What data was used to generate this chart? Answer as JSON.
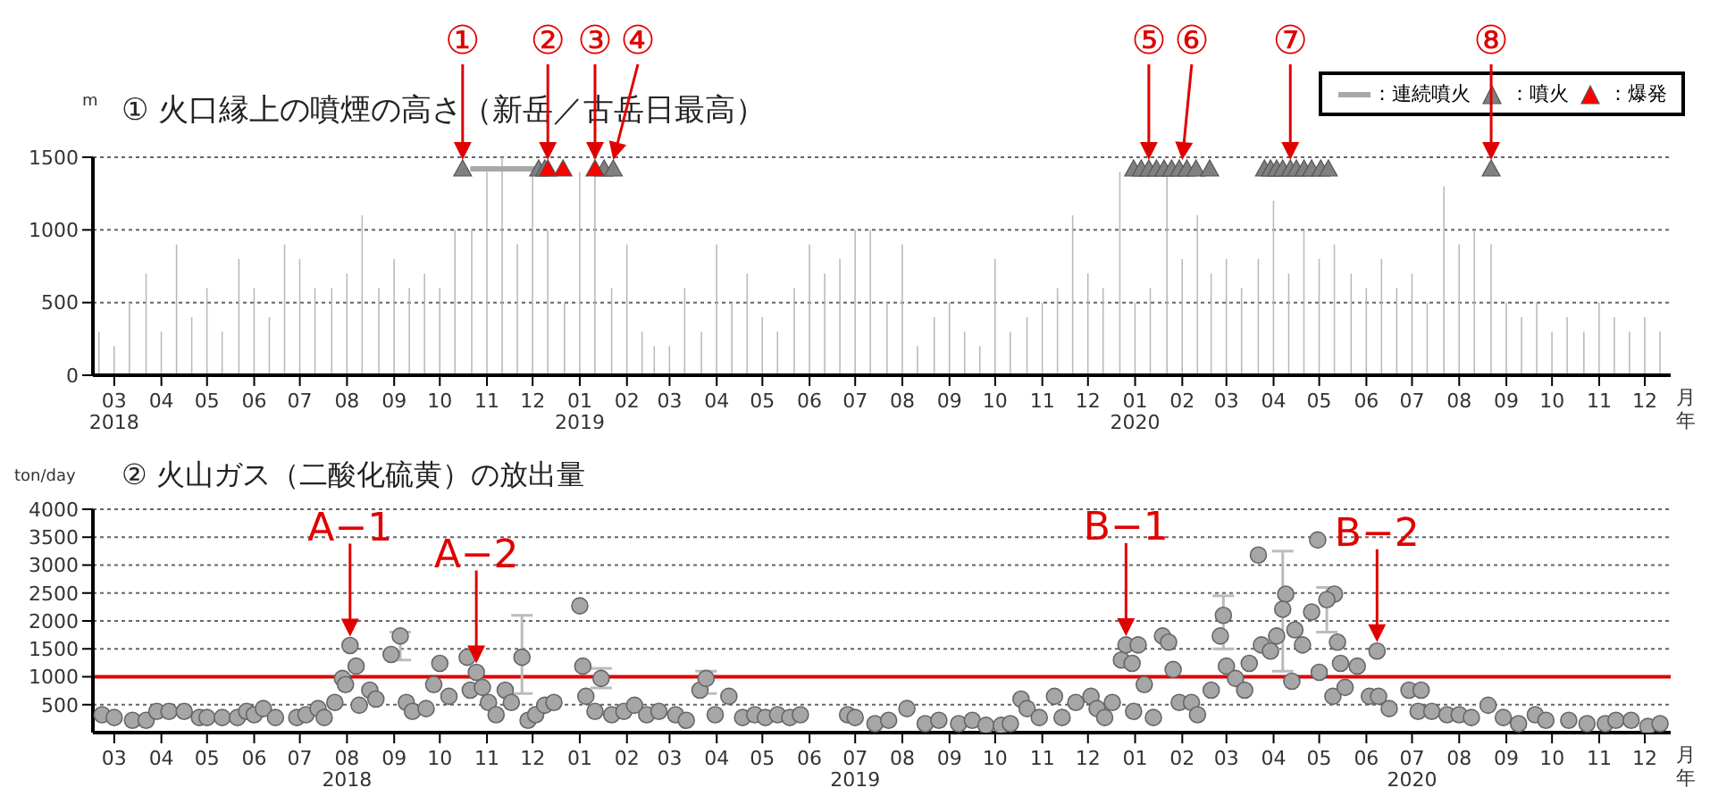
{
  "chart_data": [
    {
      "type": "bar",
      "title": "① 火口縁上の噴煙の高さ（新岳／古岳日最高）",
      "ylabel": "m",
      "xlabel": "月年",
      "legend": "top right",
      "grid": "y",
      "xlim": [
        "2018-03-01",
        "2021-01-01"
      ],
      "ylim": [
        0,
        1500
      ],
      "yticks": [
        0,
        500,
        1000,
        1500
      ],
      "xticks": [
        {
          "value": "2018-03-15",
          "label": "03\n2018"
        },
        {
          "value": "2018-04-15",
          "label": "04"
        },
        {
          "value": "2018-05-15",
          "label": "05"
        },
        {
          "value": "2018-06-15",
          "label": "06"
        },
        {
          "value": "2018-07-15",
          "label": "07"
        },
        {
          "value": "2018-08-15",
          "label": "08"
        },
        {
          "value": "2018-09-15",
          "label": "09"
        },
        {
          "value": "2018-10-15",
          "label": "10"
        },
        {
          "value": "2018-11-15",
          "label": "11"
        },
        {
          "value": "2018-12-15",
          "label": "12"
        },
        {
          "value": "2019-01-15",
          "label": "01\n2019"
        },
        {
          "value": "2019-02-15",
          "label": "02"
        },
        {
          "value": "2019-03-15",
          "label": "03"
        },
        {
          "value": "2019-04-15",
          "label": "04"
        },
        {
          "value": "2019-05-15",
          "label": "05"
        },
        {
          "value": "2019-06-15",
          "label": "06"
        },
        {
          "value": "2019-07-15",
          "label": "07"
        },
        {
          "value": "2019-08-15",
          "label": "08"
        },
        {
          "value": "2019-09-15",
          "label": "09"
        },
        {
          "value": "2019-10-15",
          "label": "10"
        },
        {
          "value": "2019-11-15",
          "label": "11"
        },
        {
          "value": "2019-12-15",
          "label": "12"
        },
        {
          "value": "2020-01-15",
          "label": "01\n2020"
        },
        {
          "value": "2020-02-15",
          "label": "02"
        },
        {
          "value": "2020-03-15",
          "label": "03"
        },
        {
          "value": "2020-04-15",
          "label": "04"
        },
        {
          "value": "2020-05-15",
          "label": "05"
        },
        {
          "value": "2020-06-15",
          "label": "06"
        },
        {
          "value": "2020-07-15",
          "label": "07"
        },
        {
          "value": "2020-08-15",
          "label": "08"
        },
        {
          "value": "2020-09-15",
          "label": "09"
        },
        {
          "value": "2020-10-15",
          "label": "10"
        },
        {
          "value": "2020-11-15",
          "label": "11"
        },
        {
          "value": "2020-12-15",
          "label": "12"
        }
      ],
      "series": [
        {
          "type": "bar",
          "color": "#b8b8b8",
          "x": [
            "2018-03-05",
            "2018-03-15",
            "2018-03-25",
            "2018-04-05",
            "2018-04-15",
            "2018-04-25",
            "2018-05-05",
            "2018-05-15",
            "2018-05-25",
            "2018-06-05",
            "2018-06-15",
            "2018-06-25",
            "2018-07-05",
            "2018-07-15",
            "2018-07-25",
            "2018-08-05",
            "2018-08-15",
            "2018-08-25",
            "2018-09-05",
            "2018-09-15",
            "2018-09-25",
            "2018-10-05",
            "2018-10-15",
            "2018-10-25",
            "2018-11-05",
            "2018-11-15",
            "2018-11-25",
            "2018-12-05",
            "2018-12-15",
            "2018-12-25",
            "2019-01-05",
            "2019-01-15",
            "2019-01-25",
            "2019-02-05",
            "2019-02-15",
            "2019-02-25",
            "2019-03-05",
            "2019-03-15",
            "2019-03-25",
            "2019-04-05",
            "2019-04-15",
            "2019-04-25",
            "2019-05-05",
            "2019-05-15",
            "2019-05-25",
            "2019-06-05",
            "2019-06-15",
            "2019-06-25",
            "2019-07-05",
            "2019-07-15",
            "2019-07-25",
            "2019-08-05",
            "2019-08-15",
            "2019-08-25",
            "2019-09-05",
            "2019-09-15",
            "2019-09-25",
            "2019-10-05",
            "2019-10-15",
            "2019-10-25",
            "2019-11-05",
            "2019-11-15",
            "2019-11-25",
            "2019-12-05",
            "2019-12-15",
            "2019-12-25",
            "2020-01-05",
            "2020-01-15",
            "2020-01-25",
            "2020-02-05",
            "2020-02-15",
            "2020-02-25",
            "2020-03-05",
            "2020-03-15",
            "2020-03-25",
            "2020-04-05",
            "2020-04-15",
            "2020-04-25",
            "2020-05-05",
            "2020-05-15",
            "2020-05-25",
            "2020-06-05",
            "2020-06-15",
            "2020-06-25",
            "2020-07-05",
            "2020-07-15",
            "2020-07-25",
            "2020-08-05",
            "2020-08-15",
            "2020-08-25",
            "2020-09-05",
            "2020-09-15",
            "2020-09-25",
            "2020-10-05",
            "2020-10-15",
            "2020-10-25",
            "2020-11-05",
            "2020-11-15",
            "2020-11-25",
            "2020-12-05",
            "2020-12-15",
            "2020-12-25"
          ],
          "values": [
            300,
            200,
            500,
            700,
            300,
            900,
            400,
            600,
            300,
            800,
            600,
            400,
            900,
            800,
            600,
            600,
            700,
            1100,
            600,
            800,
            600,
            700,
            600,
            1000,
            1000,
            1400,
            1500,
            900,
            1400,
            1000,
            500,
            1400,
            1400,
            600,
            900,
            300,
            200,
            200,
            600,
            300,
            900,
            500,
            700,
            400,
            300,
            600,
            900,
            700,
            800,
            1000,
            1000,
            500,
            900,
            200,
            400,
            500,
            300,
            200,
            800,
            300,
            400,
            500,
            600,
            1100,
            700,
            600,
            1400,
            500,
            600,
            1400,
            800,
            1100,
            700,
            800,
            600,
            800,
            1200,
            700,
            1000,
            800,
            900,
            700,
            600,
            800,
            600,
            700,
            500,
            1300,
            900,
            1000,
            900,
            500,
            400,
            500,
            300,
            400,
            300,
            500,
            400,
            300,
            400,
            300
          ]
        },
        {
          "type": "line",
          "name": "：連続噴火",
          "color": "#a8a8a8",
          "x": [
            "2018-11-04",
            "2018-12-17"
          ],
          "values": [
            1420,
            1420
          ]
        },
        {
          "type": "scatter",
          "name": "：噴火",
          "color": "#808080",
          "marker": "triangle",
          "x": [
            "2018-10-30",
            "2018-12-19",
            "2018-12-23",
            "2019-01-31",
            "2019-02-06",
            "2020-01-14",
            "2020-01-19",
            "2020-01-24",
            "2020-01-29",
            "2020-02-03",
            "2020-02-08",
            "2020-02-13",
            "2020-02-18",
            "2020-02-24",
            "2020-03-04",
            "2020-04-09",
            "2020-04-13",
            "2020-04-17",
            "2020-04-21",
            "2020-04-26",
            "2020-04-30",
            "2020-05-05",
            "2020-05-10",
            "2020-05-16",
            "2020-05-21",
            "2020-09-05"
          ],
          "values": [
            1420,
            1420,
            1420,
            1420,
            1420,
            1420,
            1420,
            1420,
            1420,
            1420,
            1420,
            1420,
            1420,
            1420,
            1420,
            1420,
            1420,
            1420,
            1420,
            1420,
            1420,
            1420,
            1420,
            1420,
            1420,
            1420
          ]
        },
        {
          "type": "scatter",
          "name": "：爆発",
          "color": "#ff0000",
          "marker": "triangle",
          "x": [
            "2018-12-25",
            "2019-01-04",
            "2019-01-25"
          ],
          "values": [
            1420,
            1420,
            1420
          ]
        }
      ],
      "annotations": [
        {
          "text": "①",
          "x": "2018-10-30",
          "y": 1420
        },
        {
          "text": "②",
          "x": "2018-12-25",
          "y": 1420
        },
        {
          "text": "③",
          "x": "2019-01-25",
          "y": 1420
        },
        {
          "text": "④",
          "x": "2019-02-06",
          "y": 1420
        },
        {
          "text": "⑤",
          "x": "2020-01-24",
          "y": 1420
        },
        {
          "text": "⑥",
          "x": "2020-02-15",
          "y": 1420
        },
        {
          "text": "⑦",
          "x": "2020-04-26",
          "y": 1420
        },
        {
          "text": "⑧",
          "x": "2020-09-05",
          "y": 1420
        }
      ]
    },
    {
      "type": "scatter",
      "title": "② 火山ガス（二酸化硫黄）の放出量",
      "ylabel": "ton/day",
      "xlabel": "月年",
      "grid": "y",
      "marker": "circle",
      "xlim": [
        "2018-03-01",
        "2021-01-01"
      ],
      "ylim": [
        0,
        4000
      ],
      "yticks": [
        500,
        1000,
        1500,
        2000,
        2500,
        3000,
        3500,
        4000
      ],
      "xticks": [
        {
          "value": "2018-03-15",
          "label": "03"
        },
        {
          "value": "2018-04-15",
          "label": "04"
        },
        {
          "value": "2018-05-15",
          "label": "05"
        },
        {
          "value": "2018-06-15",
          "label": "06"
        },
        {
          "value": "2018-07-15",
          "label": "07"
        },
        {
          "value": "2018-08-15",
          "label": "08\n2018"
        },
        {
          "value": "2018-09-15",
          "label": "09"
        },
        {
          "value": "2018-10-15",
          "label": "10"
        },
        {
          "value": "2018-11-15",
          "label": "11"
        },
        {
          "value": "2018-12-15",
          "label": "12"
        },
        {
          "value": "2019-01-15",
          "label": "01"
        },
        {
          "value": "2019-02-15",
          "label": "02"
        },
        {
          "value": "2019-03-15",
          "label": "03"
        },
        {
          "value": "2019-04-15",
          "label": "04"
        },
        {
          "value": "2019-05-15",
          "label": "05"
        },
        {
          "value": "2019-06-15",
          "label": "06"
        },
        {
          "value": "2019-07-15",
          "label": "07\n2019"
        },
        {
          "value": "2019-08-15",
          "label": "08"
        },
        {
          "value": "2019-09-15",
          "label": "09"
        },
        {
          "value": "2019-10-15",
          "label": "10"
        },
        {
          "value": "2019-11-15",
          "label": "11"
        },
        {
          "value": "2019-12-15",
          "label": "12"
        },
        {
          "value": "2020-01-15",
          "label": "01"
        },
        {
          "value": "2020-02-15",
          "label": "02"
        },
        {
          "value": "2020-03-15",
          "label": "03"
        },
        {
          "value": "2020-04-15",
          "label": "04"
        },
        {
          "value": "2020-05-15",
          "label": "05"
        },
        {
          "value": "2020-06-15",
          "label": "06"
        },
        {
          "value": "2020-07-15",
          "label": "07\n2020"
        },
        {
          "value": "2020-08-15",
          "label": "08"
        },
        {
          "value": "2020-09-15",
          "label": "09"
        },
        {
          "value": "2020-10-15",
          "label": "10"
        },
        {
          "value": "2020-11-15",
          "label": "11"
        },
        {
          "value": "2020-12-15",
          "label": "12"
        }
      ],
      "ref_lines": [
        {
          "axis": "y",
          "value": 1000,
          "color": "#e00000"
        }
      ],
      "series": [
        {
          "color": "#a6a6a6",
          "x": [
            "2018-03-07",
            "2018-03-15",
            "2018-03-27",
            "2018-04-05",
            "2018-04-12",
            "2018-04-20",
            "2018-04-30",
            "2018-05-10",
            "2018-05-15",
            "2018-05-25",
            "2018-06-04",
            "2018-06-10",
            "2018-06-15",
            "2018-06-21",
            "2018-06-29",
            "2018-07-13",
            "2018-07-19",
            "2018-07-27",
            "2018-07-31",
            "2018-08-07",
            "2018-08-12",
            "2018-08-14",
            "2018-08-17",
            "2018-08-21",
            "2018-08-23",
            "2018-08-30",
            "2018-09-03",
            "2018-09-13",
            "2018-09-23",
            "2018-09-27",
            "2018-10-06",
            "2018-10-11",
            "2018-10-15",
            "2018-10-21",
            "2018-11-02",
            "2018-11-04",
            "2018-11-08",
            "2018-11-12",
            "2018-11-16",
            "2018-11-21",
            "2018-11-27",
            "2018-12-01",
            "2018-12-12",
            "2018-12-17",
            "2018-12-23",
            "2018-12-29",
            "2019-01-15",
            "2019-01-17",
            "2019-01-19",
            "2019-01-25",
            "2019-02-05",
            "2019-02-13",
            "2019-02-20",
            "2019-02-28",
            "2019-03-08",
            "2019-03-19",
            "2019-03-26",
            "2019-04-04",
            "2019-04-14",
            "2019-04-23",
            "2019-05-02",
            "2019-05-10",
            "2019-05-17",
            "2019-05-25",
            "2019-06-02",
            "2019-06-09",
            "2019-07-10",
            "2019-07-15",
            "2019-07-28",
            "2019-08-06",
            "2019-08-18",
            "2019-08-30",
            "2019-09-08",
            "2019-09-21",
            "2019-09-30",
            "2019-10-09",
            "2019-10-19",
            "2019-10-25",
            "2019-11-01",
            "2019-11-05",
            "2019-11-13",
            "2019-11-23",
            "2019-11-28",
            "2019-12-07",
            "2019-12-17",
            "2019-12-21",
            "2019-12-26",
            "2019-12-31",
            "2020-01-06",
            "2020-01-09",
            "2020-01-13",
            "2020-01-14",
            "2020-01-17",
            "2020-01-21",
            "2020-01-27",
            "2020-02-02",
            "2020-02-06",
            "2020-02-09",
            "2020-02-13",
            "2020-02-21",
            "2020-02-25",
            "2020-03-05",
            "2020-03-11",
            "2020-03-15",
            "2020-03-21",
            "2020-03-27",
            "2020-03-30",
            "2020-04-05",
            "2020-04-07",
            "2020-04-13",
            "2020-04-17",
            "2020-04-23",
            "2020-04-27",
            "2020-04-29",
            "2020-05-04",
            "2020-05-10",
            "2020-05-14",
            "2020-05-15",
            "2020-05-24",
            "2020-05-25",
            "2020-05-27",
            "2020-05-29",
            "2020-06-01",
            "2020-06-09",
            "2020-06-17",
            "2020-06-22",
            "2020-06-23",
            "2020-06-30",
            "2020-07-13",
            "2020-07-19",
            "2020-07-21",
            "2020-07-28",
            "2020-08-07",
            "2020-08-15",
            "2020-08-23",
            "2020-09-03",
            "2020-09-13",
            "2020-09-23",
            "2020-10-04",
            "2020-10-11",
            "2020-10-26",
            "2020-11-07",
            "2020-11-19",
            "2020-11-26",
            "2020-12-06",
            "2020-12-17",
            "2020-12-25"
          ],
          "values": [
            320,
            270,
            220,
            220,
            380,
            380,
            380,
            270,
            270,
            270,
            270,
            380,
            320,
            430,
            270,
            270,
            320,
            430,
            270,
            540,
            970,
            860,
            1560,
            1190,
            490,
            760,
            600,
            1400,
            540,
            380,
            430,
            860,
            1240,
            650,
            1350,
            760,
            1080,
            810,
            540,
            320,
            760,
            540,
            220,
            320,
            490,
            540,
            2270,
            1190,
            650,
            380,
            320,
            380,
            490,
            320,
            380,
            320,
            220,
            760,
            320,
            650,
            270,
            320,
            270,
            320,
            270,
            320,
            320,
            270,
            160,
            220,
            430,
            160,
            220,
            160,
            220,
            130,
            130,
            160,
            600,
            430,
            270,
            650,
            270,
            540,
            650,
            430,
            270,
            540,
            1300,
            1570,
            1240,
            380,
            1570,
            860,
            270,
            1730,
            1620,
            1130,
            540,
            540,
            320,
            760,
            1730,
            1190,
            970,
            760,
            1240,
            3180,
            1570,
            1460,
            1730,
            2480,
            920,
            1840,
            1570,
            2160,
            3450,
            1080,
            650,
            2480,
            1620,
            1240,
            810,
            1190,
            650,
            1460,
            650,
            430,
            760,
            380,
            760,
            380,
            320,
            320,
            270,
            490,
            270,
            160,
            320,
            220,
            220,
            160,
            160,
            220,
            220,
            110,
            160
          ]
        },
        {
          "color": "#a6a6a6",
          "x": [
            "2018-09-19",
            "2018-12-08",
            "2019-01-29",
            "2019-04-08",
            "2020-03-13",
            "2020-04-21",
            "2020-05-20"
          ],
          "values": [
            1730,
            1350,
            970,
            970,
            2100,
            2210,
            2380
          ],
          "errors": [
            [
              1300,
              1800
            ],
            [
              700,
              2100
            ],
            [
              800,
              1150
            ],
            [
              700,
              1100
            ],
            [
              1500,
              2450
            ],
            [
              1100,
              3250
            ],
            [
              1800,
              2600
            ]
          ]
        }
      ],
      "annotations": [
        {
          "text": "A−1",
          "x": "2018-08-17",
          "y": 1560
        },
        {
          "text": "A−2",
          "x": "2018-11-08",
          "y": 1080
        },
        {
          "text": "B−1",
          "x": "2020-01-09",
          "y": 1570
        },
        {
          "text": "B−2",
          "x": "2020-06-22",
          "y": 1460
        }
      ]
    }
  ]
}
